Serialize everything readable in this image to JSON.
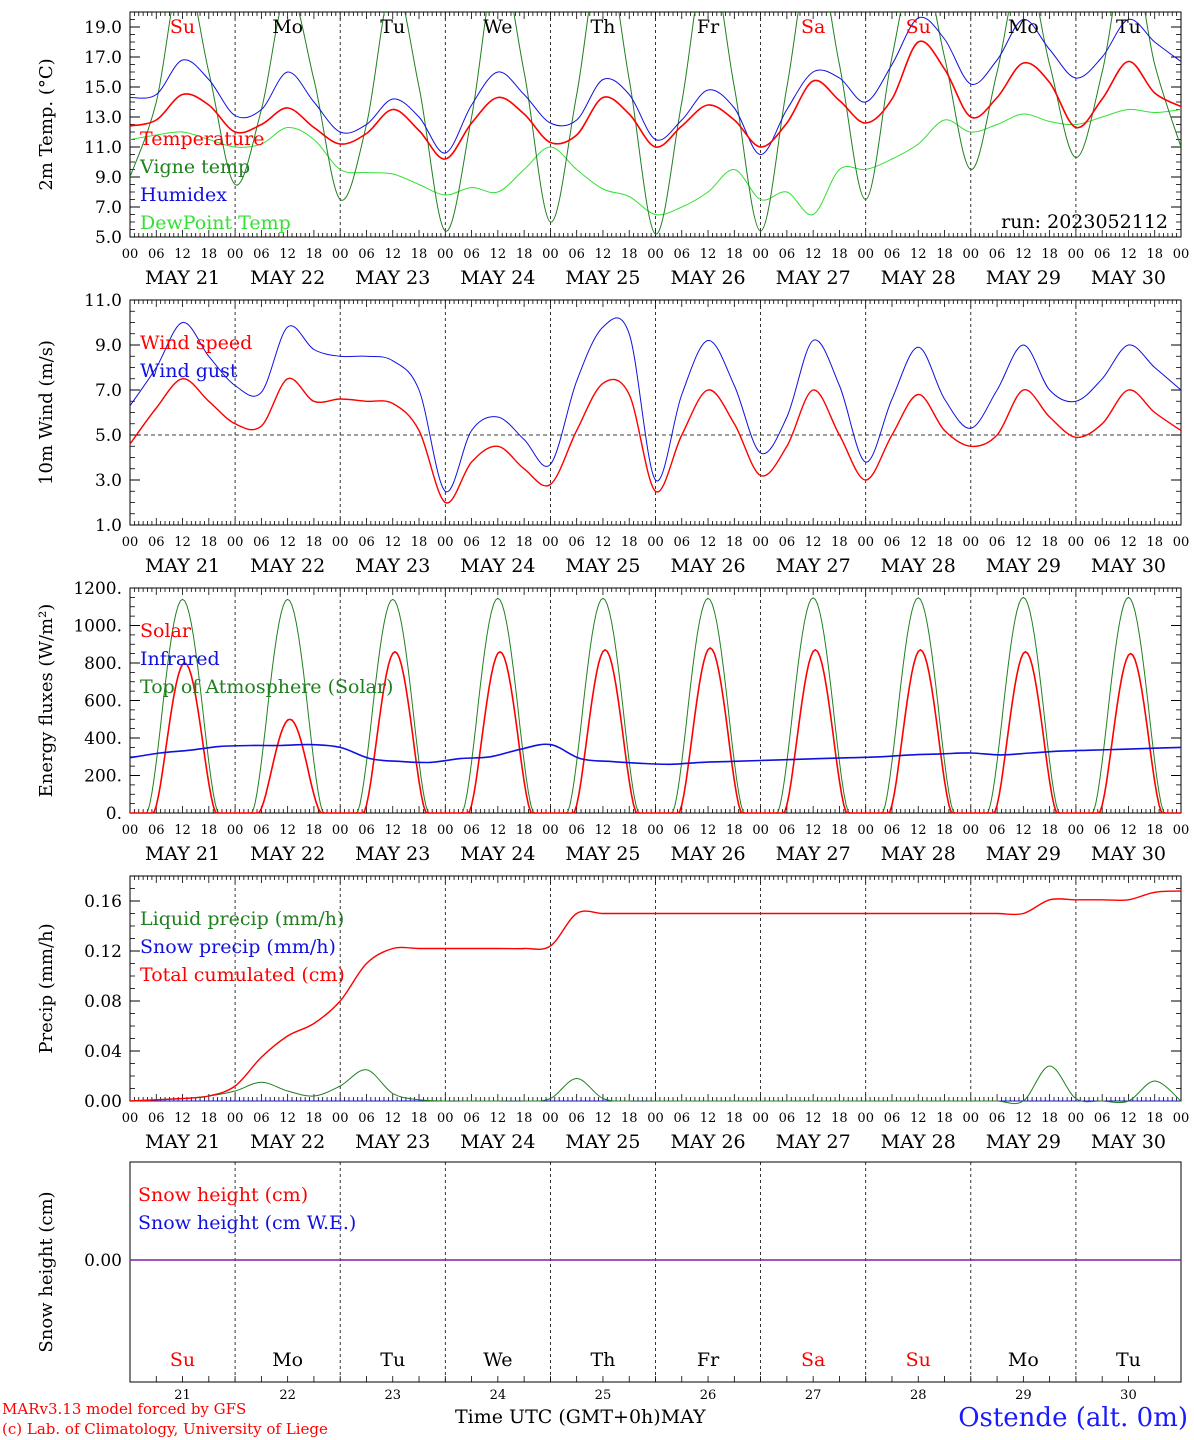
{
  "colors": {
    "red": "#ff0000",
    "dark_green": "#208020",
    "blue": "#1010e0",
    "light_green": "#33e033",
    "purple": "#8020a0"
  },
  "x_axis": {
    "hour_ticks": [
      "00",
      "06",
      "12",
      "18"
    ],
    "end_tick": "00",
    "date_labels": [
      "MAY 21",
      "MAY 22",
      "MAY 23",
      "MAY 24",
      "MAY 25",
      "MAY 26",
      "MAY 27",
      "MAY 28",
      "MAY 29",
      "MAY 30"
    ],
    "day_numbers": [
      "21",
      "22",
      "23",
      "24",
      "25",
      "26",
      "27",
      "28",
      "29",
      "30"
    ],
    "title": "Time UTC (GMT+0h)",
    "month": "MAY"
  },
  "weekdays": [
    {
      "label": "Su",
      "color": "#ff0000"
    },
    {
      "label": "Mo",
      "color": "#000000"
    },
    {
      "label": "Tu",
      "color": "#000000"
    },
    {
      "label": "We",
      "color": "#000000"
    },
    {
      "label": "Th",
      "color": "#000000"
    },
    {
      "label": "Fr",
      "color": "#000000"
    },
    {
      "label": "Sa",
      "color": "#ff0000"
    },
    {
      "label": "Su",
      "color": "#ff0000"
    },
    {
      "label": "Mo",
      "color": "#000000"
    },
    {
      "label": "Tu",
      "color": "#000000"
    }
  ],
  "footer": {
    "credit_line1": "MARv3.13 model forced by GFS",
    "credit_line2": "(c) Lab. of Climatology, University of Liege",
    "station": "Ostende (alt. 0m)"
  },
  "chart_data": [
    {
      "type": "line",
      "ylabel": "2m Temp. (°C)",
      "ylim": [
        5,
        20
      ],
      "yticks": [
        "5.0",
        "7.0",
        "9.0",
        "11.0",
        "13.0",
        "15.0",
        "17.0",
        "19.0"
      ],
      "run_label": "run: 2023052112",
      "x": [
        "05-21 00",
        "05-21 06",
        "05-21 12",
        "05-21 18",
        "05-22 00",
        "05-22 06",
        "05-22 12",
        "05-22 18",
        "05-23 00",
        "05-23 06",
        "05-23 12",
        "05-23 18",
        "05-24 00",
        "05-24 06",
        "05-24 12",
        "05-24 18",
        "05-25 00",
        "05-25 06",
        "05-25 12",
        "05-25 18",
        "05-26 00",
        "05-26 06",
        "05-26 12",
        "05-26 18",
        "05-27 00",
        "05-27 06",
        "05-27 12",
        "05-27 18",
        "05-28 00",
        "05-28 06",
        "05-28 12",
        "05-28 18",
        "05-29 00",
        "05-29 06",
        "05-29 12",
        "05-29 18",
        "05-30 00",
        "05-30 06",
        "05-30 12",
        "05-30 18",
        "05-31 00"
      ],
      "series": [
        {
          "name": "Temperature",
          "color": "#ff0000",
          "width": 1.6,
          "values": [
            12.4,
            12.8,
            14.5,
            13.8,
            12.0,
            12.5,
            13.6,
            12.3,
            11.2,
            11.9,
            13.5,
            12.1,
            10.2,
            12.6,
            14.3,
            13.2,
            11.3,
            11.8,
            14.3,
            13.2,
            11.0,
            12.4,
            13.8,
            12.8,
            11.0,
            12.6,
            15.4,
            14.1,
            12.6,
            14.2,
            18.0,
            16.2,
            13.0,
            14.3,
            16.6,
            15.3,
            12.3,
            14.2,
            16.7,
            14.6,
            13.7
          ]
        },
        {
          "name": "Vigne temp",
          "color": "#208020",
          "width": 1.0,
          "values": [
            9.0,
            14.0,
            23.0,
            16.0,
            8.5,
            13.5,
            21.5,
            15.5,
            7.5,
            12.5,
            22.0,
            15.0,
            5.4,
            13.0,
            23.5,
            16.0,
            6.0,
            14.5,
            24.5,
            15.5,
            5.2,
            14.0,
            24.0,
            15.0,
            5.4,
            15.0,
            24.5,
            16.5,
            7.5,
            17.0,
            24.0,
            17.0,
            9.5,
            16.0,
            23.5,
            16.5,
            10.3,
            16.0,
            24.5,
            16.5,
            11.0
          ]
        },
        {
          "name": "Humidex",
          "color": "#1010e0",
          "width": 1.0,
          "values": [
            14.3,
            14.5,
            16.8,
            15.5,
            13.1,
            13.5,
            16.0,
            14.0,
            12.0,
            12.5,
            14.2,
            13.0,
            10.6,
            13.8,
            16.0,
            14.5,
            12.6,
            12.8,
            15.5,
            14.5,
            11.5,
            12.8,
            14.8,
            13.6,
            10.5,
            13.5,
            16.0,
            15.6,
            14.0,
            16.5,
            19.6,
            18.2,
            15.2,
            16.8,
            19.5,
            17.5,
            15.6,
            17.0,
            19.5,
            18.0,
            16.7
          ]
        },
        {
          "name": "DewPoint Temp",
          "color": "#33e033",
          "width": 1.0,
          "values": [
            11.5,
            11.8,
            12.0,
            11.5,
            11.0,
            11.2,
            12.3,
            11.5,
            9.5,
            9.3,
            9.2,
            8.5,
            7.8,
            8.3,
            8.0,
            9.5,
            11.0,
            9.5,
            8.2,
            7.7,
            6.5,
            7.0,
            8.0,
            9.5,
            7.5,
            8.0,
            6.5,
            9.5,
            9.5,
            10.2,
            11.2,
            12.8,
            12.0,
            12.5,
            13.2,
            12.7,
            12.5,
            13.0,
            13.5,
            13.3,
            13.5
          ]
        }
      ]
    },
    {
      "type": "line",
      "ylabel": "10m Wind (m/s)",
      "ylim": [
        1,
        11
      ],
      "yticks": [
        "1.0",
        "3.0",
        "5.0",
        "7.0",
        "9.0",
        "11.0"
      ],
      "reference_line": 5,
      "x": [
        "05-21 00",
        "05-21 06",
        "05-21 12",
        "05-21 18",
        "05-22 00",
        "05-22 06",
        "05-22 12",
        "05-22 18",
        "05-23 00",
        "05-23 06",
        "05-23 12",
        "05-23 18",
        "05-24 00",
        "05-24 06",
        "05-24 12",
        "05-24 18",
        "05-25 00",
        "05-25 06",
        "05-25 12",
        "05-25 18",
        "05-26 00",
        "05-26 06",
        "05-26 12",
        "05-26 18",
        "05-27 00",
        "05-27 06",
        "05-27 12",
        "05-27 18",
        "05-28 00",
        "05-28 06",
        "05-28 12",
        "05-28 18",
        "05-29 00",
        "05-29 06",
        "05-29 12",
        "05-29 18",
        "05-30 00",
        "05-30 06",
        "05-30 12",
        "05-30 18",
        "05-31 00"
      ],
      "series": [
        {
          "name": "Wind speed",
          "color": "#ff0000",
          "width": 1.4,
          "values": [
            4.6,
            6.2,
            7.5,
            6.5,
            5.5,
            5.4,
            7.5,
            6.5,
            6.6,
            6.5,
            6.4,
            5.2,
            2.0,
            3.8,
            4.5,
            3.5,
            2.8,
            5.2,
            7.3,
            6.8,
            2.5,
            5.0,
            7.0,
            5.5,
            3.2,
            4.5,
            7.0,
            5.0,
            3.0,
            5.0,
            6.8,
            5.2,
            4.5,
            5.0,
            7.0,
            5.8,
            4.9,
            5.5,
            7.0,
            6.0,
            5.2
          ]
        },
        {
          "name": "Wind gust",
          "color": "#1010e0",
          "width": 1.0,
          "values": [
            6.3,
            8.0,
            10.0,
            8.5,
            7.2,
            6.9,
            9.8,
            8.8,
            8.5,
            8.5,
            8.3,
            7.0,
            2.5,
            5.2,
            5.8,
            4.8,
            3.7,
            7.4,
            9.8,
            9.5,
            3.0,
            6.8,
            9.2,
            7.2,
            4.2,
            5.8,
            9.2,
            7.2,
            3.8,
            6.6,
            8.9,
            6.6,
            5.3,
            7.0,
            9.0,
            7.0,
            6.5,
            7.5,
            9.0,
            8.0,
            7.0
          ]
        }
      ]
    },
    {
      "type": "line",
      "ylabel": "Energy fluxes (W/m²)",
      "ylim": [
        0,
        1200
      ],
      "yticks": [
        "0.",
        "200.",
        "400.",
        "600.",
        "800.",
        "1000.",
        "1200."
      ],
      "x_day_start": "05-21 00",
      "series": [
        {
          "name": "Solar",
          "color": "#ff0000",
          "width": 1.6,
          "values_at_local_noon": [
            800,
            500,
            860,
            860,
            870,
            880,
            870,
            870,
            860,
            850
          ]
        },
        {
          "name": "Infrared",
          "color": "#1010e0",
          "width": 1.6,
          "values": [
            295,
            320,
            335,
            355,
            360,
            360,
            365,
            350,
            290,
            275,
            270,
            290,
            300,
            340,
            365,
            290,
            275,
            265,
            260,
            270,
            275,
            280,
            285,
            290,
            295,
            300,
            310,
            315,
            320,
            310,
            320,
            330,
            335,
            340,
            345,
            350
          ]
        },
        {
          "name": "Top of Atmosphere (Solar)",
          "color": "#208020",
          "width": 1.0,
          "values_at_local_noon": [
            1140,
            1140,
            1140,
            1145,
            1145,
            1145,
            1148,
            1148,
            1150,
            1150
          ]
        }
      ]
    },
    {
      "type": "line",
      "ylabel": "Precip (mm/h)",
      "ylim": [
        0,
        0.18
      ],
      "yticks": [
        "0.00",
        "0.04",
        "0.08",
        "0.12",
        "0.16"
      ],
      "x": [
        "05-21 00",
        "05-21 06",
        "05-21 12",
        "05-21 18",
        "05-22 00",
        "05-22 06",
        "05-22 12",
        "05-22 18",
        "05-23 00",
        "05-23 06",
        "05-23 12",
        "05-23 18",
        "05-24 00",
        "05-24 06",
        "05-24 12",
        "05-24 18",
        "05-25 00",
        "05-25 06",
        "05-25 12",
        "05-25 18",
        "05-26 00",
        "05-26 06",
        "05-26 12",
        "05-26 18",
        "05-27 00",
        "05-27 06",
        "05-27 12",
        "05-27 18",
        "05-28 00",
        "05-28 06",
        "05-28 12",
        "05-28 18",
        "05-29 00",
        "05-29 06",
        "05-29 12",
        "05-29 18",
        "05-30 00",
        "05-30 06",
        "05-30 12",
        "05-30 18",
        "05-31 00"
      ],
      "series": [
        {
          "name": "Liquid precip (mm/h)",
          "color": "#208020",
          "width": 1.0,
          "values": [
            0,
            0.001,
            0.002,
            0.004,
            0.008,
            0.015,
            0.008,
            0.004,
            0.012,
            0.025,
            0.006,
            0.001,
            0,
            0,
            0,
            0,
            0.002,
            0.018,
            0.002,
            0,
            0,
            0,
            0,
            0,
            0,
            0,
            0,
            0,
            0,
            0,
            0,
            0,
            0,
            0,
            0,
            0.028,
            0.002,
            0,
            0,
            0.016,
            0
          ]
        },
        {
          "name": "Snow precip (mm/h)",
          "color": "#1010e0",
          "width": 1.0,
          "values": [
            0,
            0,
            0,
            0,
            0,
            0,
            0,
            0,
            0,
            0,
            0,
            0,
            0,
            0,
            0,
            0,
            0,
            0,
            0,
            0,
            0,
            0,
            0,
            0,
            0,
            0,
            0,
            0,
            0,
            0,
            0,
            0,
            0,
            0,
            0,
            0,
            0,
            0,
            0,
            0,
            0
          ]
        },
        {
          "name": "Total cumulated (cm)",
          "color": "#ff0000",
          "width": 1.4,
          "values": [
            0,
            0.001,
            0.002,
            0.004,
            0.012,
            0.035,
            0.052,
            0.062,
            0.08,
            0.11,
            0.122,
            0.122,
            0.122,
            0.122,
            0.122,
            0.122,
            0.124,
            0.15,
            0.15,
            0.15,
            0.15,
            0.15,
            0.15,
            0.15,
            0.15,
            0.15,
            0.15,
            0.15,
            0.15,
            0.15,
            0.15,
            0.15,
            0.15,
            0.15,
            0.15,
            0.161,
            0.161,
            0.161,
            0.161,
            0.167,
            0.168
          ]
        }
      ]
    },
    {
      "type": "line",
      "ylabel": "Snow height (cm)",
      "ytick": "0.00",
      "series": [
        {
          "name": "Snow height (cm)",
          "color": "#ff0000",
          "values": [
            0,
            0
          ]
        },
        {
          "name": "Snow height (cm W.E.)",
          "color": "#1010e0",
          "values": [
            0,
            0
          ]
        }
      ]
    }
  ]
}
